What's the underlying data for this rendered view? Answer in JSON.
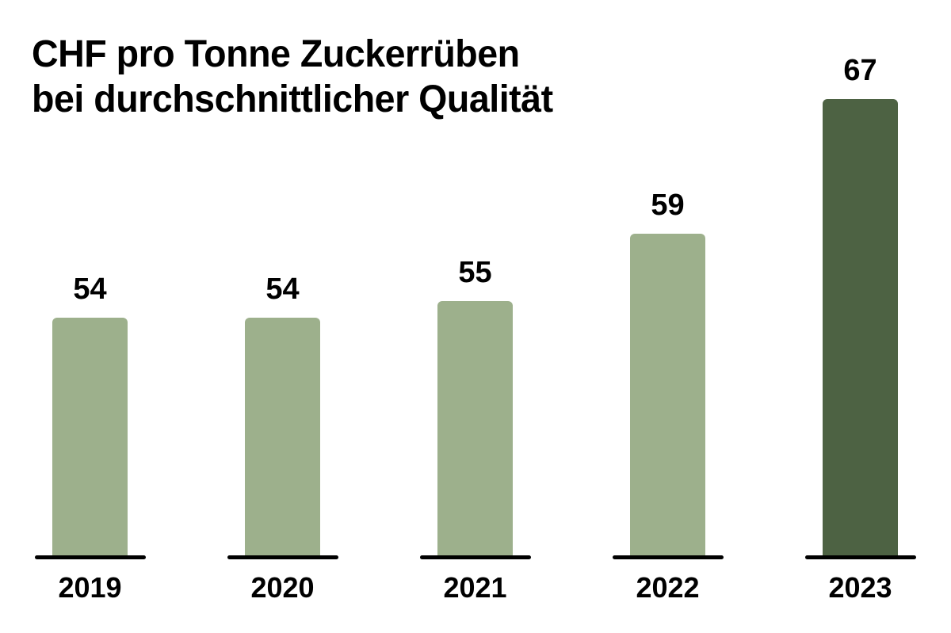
{
  "chart_data": {
    "type": "bar",
    "title": "CHF pro Tonne Zuckerrüben bei durchschnittlicher Qualität",
    "title_lines": [
      "CHF pro Tonne Zuckerrüben",
      "bei durchschnittlicher Qualität"
    ],
    "categories": [
      "2019",
      "2020",
      "2021",
      "2022",
      "2023"
    ],
    "values": [
      54,
      54,
      55,
      59,
      67
    ],
    "highlight_index": 4,
    "ylim": [
      40,
      70
    ],
    "grid": false,
    "legend": false,
    "xlabel": "",
    "ylabel": "",
    "colors": {
      "bar_default": "#9DB08C",
      "bar_highlight": "#4D6243",
      "axis_line": "#000000",
      "text": "#000000",
      "background": "#FFFFFF"
    }
  }
}
